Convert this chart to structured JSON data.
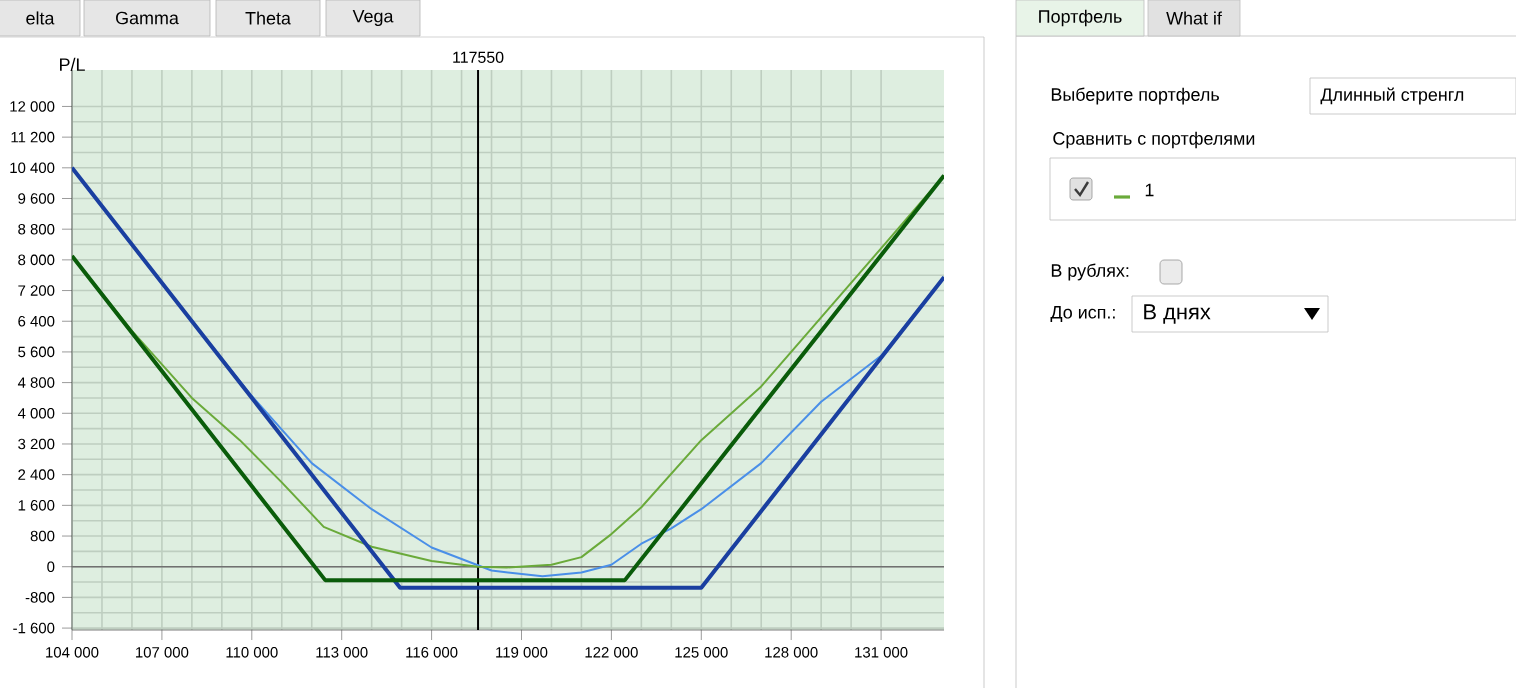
{
  "chart_data": [
    {
      "type": "line",
      "ylabel": "P/L",
      "xlim": [
        104000,
        133100
      ],
      "ylim": [
        -1650,
        12950
      ],
      "xticks": [
        {
          "value": 104000,
          "label": "104 000"
        },
        {
          "value": 107000,
          "label": "107 000"
        },
        {
          "value": 110000,
          "label": "110 000"
        },
        {
          "value": 113000,
          "label": "113 000"
        },
        {
          "value": 116000,
          "label": "116 000"
        },
        {
          "value": 119000,
          "label": "119 000"
        },
        {
          "value": 122000,
          "label": "122 000"
        },
        {
          "value": 125000,
          "label": "125 000"
        },
        {
          "value": 128000,
          "label": "128 000"
        },
        {
          "value": 131000,
          "label": "131 000"
        }
      ],
      "yticks": [
        {
          "value": -1600,
          "label": "-1 600"
        },
        -800,
        0,
        800,
        {
          "value": 1600,
          "label": "1 600"
        },
        {
          "value": 2400,
          "label": "2 400"
        },
        {
          "value": 3200,
          "label": "3 200"
        },
        {
          "value": 4000,
          "label": "4 000"
        },
        {
          "value": 4800,
          "label": "4 800"
        },
        {
          "value": 5600,
          "label": "5 600"
        },
        {
          "value": 6400,
          "label": "6 400"
        },
        {
          "value": 7200,
          "label": "7 200"
        },
        {
          "value": 8000,
          "label": "8 000"
        },
        {
          "value": 8800,
          "label": "8 800"
        },
        {
          "value": 9600,
          "label": "9 600"
        },
        {
          "value": 10400,
          "label": "10 400"
        },
        {
          "value": 11200,
          "label": "11 200"
        },
        {
          "value": 12000,
          "label": "12 000"
        }
      ],
      "grid": true,
      "marker": "none",
      "line_style": "solid",
      "series": [
        {
          "color": "#4a8fe8",
          "x": [
            104000,
            106000,
            108000,
            110000,
            112000,
            114000,
            116000,
            118000,
            119700,
            121000,
            122000,
            123000,
            124000,
            125000,
            127000,
            129000,
            131000,
            133100
          ],
          "values": [
            10400,
            8400,
            6400,
            4450,
            2700,
            1500,
            500,
            -100,
            -250,
            -150,
            50,
            600,
            1000,
            1500,
            2700,
            4300,
            5500,
            7550
          ]
        },
        {
          "color": "#6aaa3a",
          "x": [
            104000,
            106000,
            108000,
            109600,
            111000,
            112400,
            114000,
            116000,
            117550,
            118500,
            120000,
            121000,
            122000,
            123000,
            125000,
            127000,
            129000,
            131000,
            133100
          ],
          "values": [
            8100,
            6150,
            4400,
            3300,
            2200,
            1040,
            520,
            150,
            0,
            -20,
            50,
            250,
            850,
            1550,
            3300,
            4700,
            6500,
            8300,
            10200
          ]
        },
        {
          "color": "#1a3fa0",
          "x": [
            104000,
            114950,
            125000,
            133100
          ],
          "values": [
            10400,
            -550,
            -550,
            7550
          ]
        },
        {
          "color": "#0a5c0a",
          "x": [
            104000,
            112450,
            122450,
            133100
          ],
          "values": [
            8100,
            -350,
            -350,
            10200
          ]
        }
      ],
      "ref_lines": [
        {
          "axis": "y",
          "value": 0,
          "color": "#707070"
        },
        {
          "axis": "x",
          "value": 117550,
          "label": "117550",
          "color": "#000000"
        }
      ],
      "annotations": [
        "elta",
        "Gamma",
        "Theta",
        "Vega"
      ]
    },
    {
      "type": "other",
      "annotations": [
        "Портфель",
        "What if",
        "Выберите портфель",
        "Длинный стренгл",
        "Сравнить с портфелями",
        "1",
        "В рублях:",
        "До исп.:",
        "В днях"
      ]
    }
  ]
}
